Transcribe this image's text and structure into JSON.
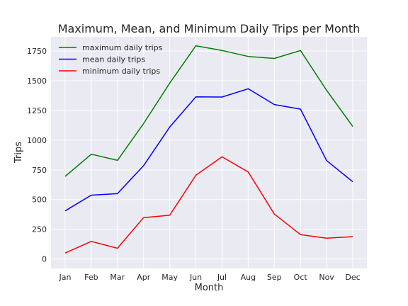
{
  "chart_data": {
    "type": "line",
    "title": "Maximum, Mean, and Minimum Daily Trips per Month",
    "xlabel": "Month",
    "ylabel": "Trips",
    "categories": [
      "Jan",
      "Feb",
      "Mar",
      "Apr",
      "May",
      "Jun",
      "Jul",
      "Aug",
      "Sep",
      "Oct",
      "Nov",
      "Dec"
    ],
    "ylim": [
      -80,
      1870
    ],
    "yticks": [
      0,
      250,
      500,
      750,
      1000,
      1250,
      1500,
      1750
    ],
    "ytick_labels": [
      "0",
      "250",
      "500",
      "750",
      "1000",
      "1250",
      "1500",
      "1750"
    ],
    "grid": true,
    "legend_position": "upper-left",
    "series": [
      {
        "name": "maximum daily trips",
        "color": "#008000",
        "values": [
          695,
          882,
          830,
          1140,
          1480,
          1795,
          1755,
          1705,
          1688,
          1755,
          1420,
          1115
        ]
      },
      {
        "name": "mean daily trips",
        "color": "#0000ff",
        "values": [
          405,
          537,
          550,
          785,
          1110,
          1365,
          1363,
          1433,
          1300,
          1262,
          828,
          650
        ]
      },
      {
        "name": "minimum daily trips",
        "color": "#ff0000",
        "values": [
          50,
          148,
          90,
          348,
          368,
          705,
          860,
          732,
          378,
          205,
          175,
          188
        ]
      }
    ]
  }
}
